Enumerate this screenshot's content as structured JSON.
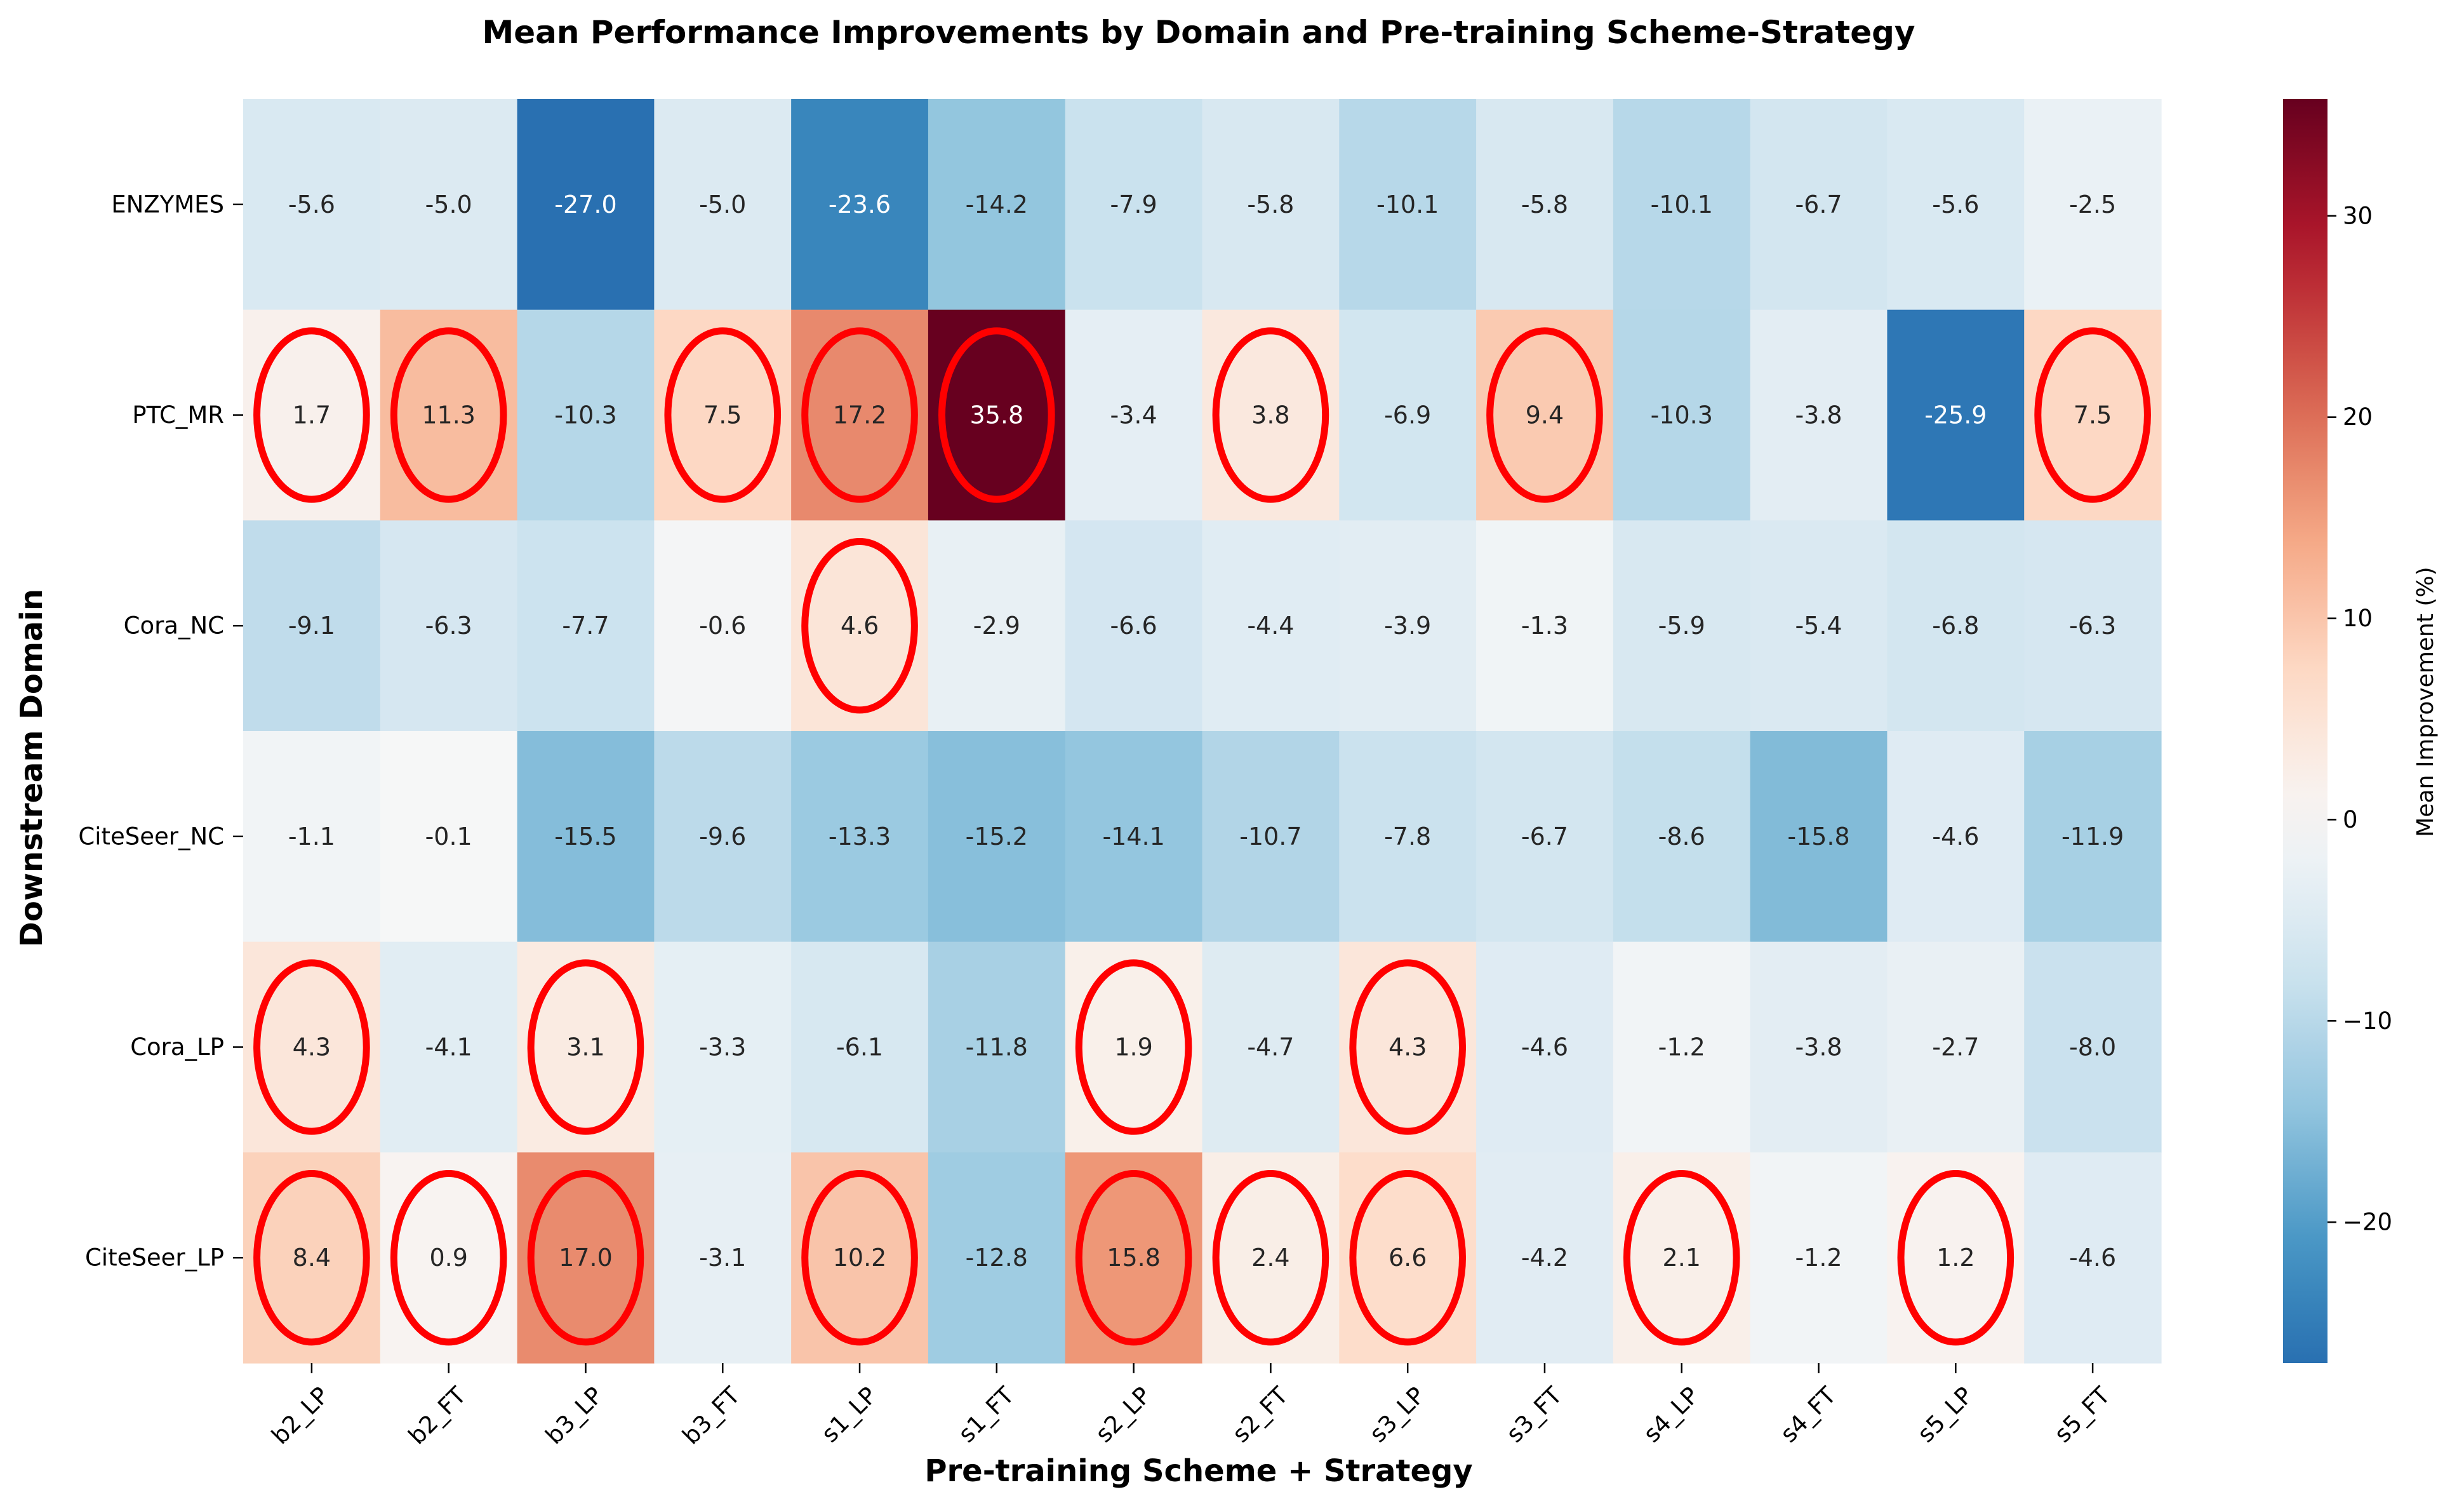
{
  "chart_data": {
    "type": "heatmap",
    "title": "Mean Performance Improvements by Domain and Pre-training Scheme-Strategy",
    "xlabel": "Pre-training Scheme + Strategy",
    "ylabel": "Downstream Domain",
    "x_categories": [
      "b2_LP",
      "b2_FT",
      "b3_LP",
      "b3_FT",
      "s1_LP",
      "s1_FT",
      "s2_LP",
      "s2_FT",
      "s3_LP",
      "s3_FT",
      "s4_LP",
      "s4_FT",
      "s5_LP",
      "s5_FT"
    ],
    "y_categories": [
      "ENZYMES",
      "PTC_MR",
      "Cora_NC",
      "CiteSeer_NC",
      "Cora_LP",
      "CiteSeer_LP"
    ],
    "values": [
      [
        -5.6,
        -5.0,
        -27.0,
        -5.0,
        -23.6,
        -14.2,
        -7.9,
        -5.8,
        -10.1,
        -5.8,
        -10.1,
        -6.7,
        -5.6,
        -2.5
      ],
      [
        1.7,
        11.3,
        -10.3,
        7.5,
        17.2,
        35.8,
        -3.4,
        3.8,
        -6.9,
        9.4,
        -10.3,
        -3.8,
        -25.9,
        7.5
      ],
      [
        -9.1,
        -6.3,
        -7.7,
        -0.6,
        4.6,
        -2.9,
        -6.6,
        -4.4,
        -3.9,
        -1.3,
        -5.9,
        -5.4,
        -6.8,
        -6.3
      ],
      [
        -1.1,
        -0.1,
        -15.5,
        -9.6,
        -13.3,
        -15.2,
        -14.1,
        -10.7,
        -7.8,
        -6.7,
        -8.6,
        -15.8,
        -4.6,
        -11.9
      ],
      [
        4.3,
        -4.1,
        3.1,
        -3.3,
        -6.1,
        -11.8,
        1.9,
        -4.7,
        4.3,
        -4.6,
        -1.2,
        -3.8,
        -2.7,
        -8.0
      ],
      [
        8.4,
        0.9,
        17.0,
        -3.1,
        10.2,
        -12.8,
        15.8,
        2.4,
        6.6,
        -4.2,
        2.1,
        -1.2,
        1.2,
        -4.6
      ]
    ],
    "highlight": "positive values circled",
    "highlight_color": "#ff0000",
    "colorbar": {
      "label": "Mean Improvement (%)",
      "ticks": [
        30,
        20,
        10,
        0,
        -10,
        -20
      ],
      "tick_labels": [
        "30",
        "20",
        "10",
        "0",
        "−10",
        "−20"
      ],
      "vmin": -27.0,
      "vmax": 35.8,
      "colormap": "RdBu_r"
    }
  }
}
